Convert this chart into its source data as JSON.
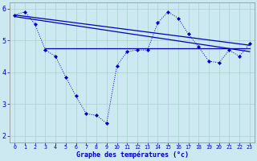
{
  "bg_color": "#cce8f0",
  "grid_color": "#b0d4d4",
  "line_color": "#0000bb",
  "xlabel": "Graphe des températures (°c)",
  "x_hours": [
    0,
    1,
    2,
    3,
    4,
    5,
    6,
    7,
    8,
    9,
    10,
    11,
    12,
    13,
    14,
    15,
    16,
    17,
    18,
    19,
    20,
    21,
    22,
    23
  ],
  "s1_y": [
    5.8,
    5.9,
    5.5,
    4.7,
    4.5,
    3.85,
    3.25,
    2.7,
    2.65,
    2.4,
    4.2,
    4.65,
    4.7,
    4.7,
    5.55,
    5.9,
    5.7,
    5.2,
    4.8,
    4.35,
    4.3,
    4.7,
    4.5,
    4.9
  ],
  "line1_x": [
    0,
    23
  ],
  "line1_y": [
    5.8,
    4.85
  ],
  "line2_x": [
    0,
    23
  ],
  "line2_y": [
    5.75,
    4.65
  ],
  "line3_x": [
    3,
    23
  ],
  "line3_y": [
    4.75,
    4.75
  ],
  "ylim": [
    1.8,
    6.2
  ],
  "yticks": [
    2,
    3,
    4,
    5,
    6
  ],
  "xlim": [
    -0.5,
    23.5
  ]
}
